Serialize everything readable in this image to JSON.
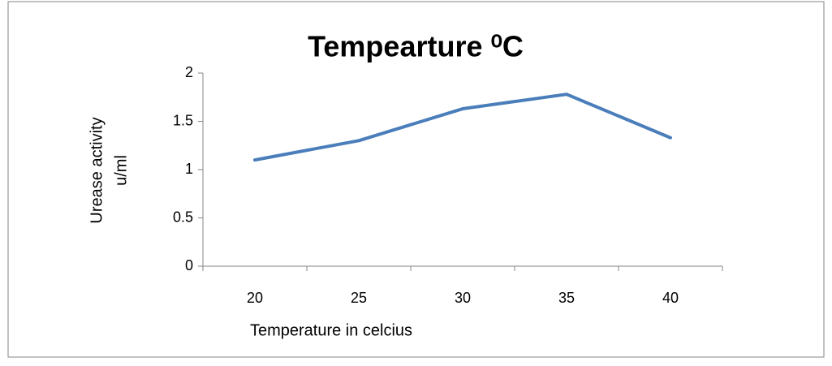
{
  "chart_data": {
    "type": "line",
    "title": "Tempearture ⁰C",
    "xlabel": "Temperature in celcius",
    "ylabel_lines": [
      "Urease activity",
      "u/ml"
    ],
    "categories": [
      "20",
      "25",
      "30",
      "35",
      "40"
    ],
    "series": [
      {
        "color": "#4a7ebb",
        "values": [
          1.1,
          1.3,
          1.63,
          1.78,
          1.33
        ]
      }
    ],
    "ylim": [
      0,
      2
    ],
    "yticks": [
      0,
      0.5,
      1,
      1.5,
      2
    ],
    "grid": false
  }
}
